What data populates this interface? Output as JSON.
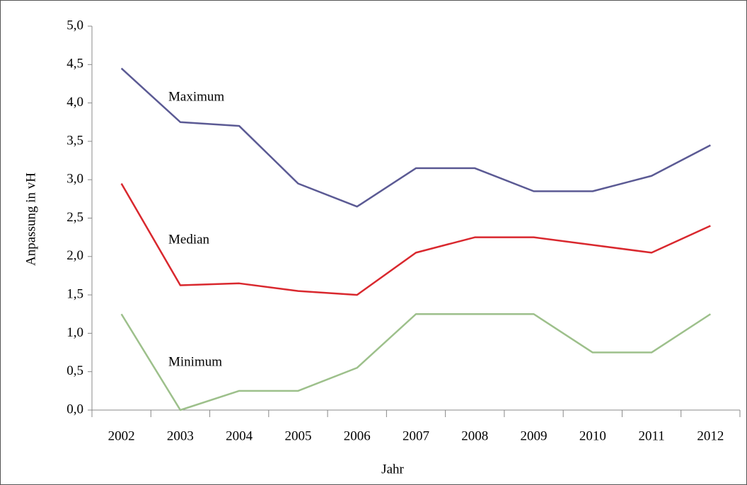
{
  "chart_data": {
    "type": "line",
    "x_label": "Jahr",
    "y_label": "Anpassung in vH",
    "categories": [
      "2002",
      "2003",
      "2004",
      "2005",
      "2006",
      "2007",
      "2008",
      "2009",
      "2010",
      "2011",
      "2012"
    ],
    "series": [
      {
        "name": "Maximum",
        "color": "#5b5a94",
        "values": [
          4.45,
          3.75,
          3.7,
          2.95,
          2.65,
          3.15,
          3.15,
          2.85,
          2.85,
          3.05,
          3.45
        ]
      },
      {
        "name": "Median",
        "color": "#d9282e",
        "values": [
          2.95,
          1.625,
          1.65,
          1.55,
          1.5,
          2.05,
          2.25,
          2.25,
          2.15,
          2.05,
          2.4
        ]
      },
      {
        "name": "Minimum",
        "color": "#9dc08b",
        "values": [
          1.25,
          0,
          0.25,
          0.25,
          0.55,
          1.25,
          1.25,
          1.25,
          0.75,
          0.75,
          1.25
        ]
      }
    ],
    "ylim": [
      0,
      5
    ],
    "yticks": [
      {
        "value": 0,
        "label": "0,0"
      },
      {
        "value": 0.5,
        "label": "0,5"
      },
      {
        "value": 1,
        "label": "1,0"
      },
      {
        "value": 1.5,
        "label": "1,5"
      },
      {
        "value": 2,
        "label": "2,0"
      },
      {
        "value": 2.5,
        "label": "2,5"
      },
      {
        "value": 3,
        "label": "3,0"
      },
      {
        "value": 3.5,
        "label": "3,5"
      },
      {
        "value": 4,
        "label": "4,0"
      },
      {
        "value": 4.5,
        "label": "4,5"
      },
      {
        "value": 5,
        "label": "5,0"
      }
    ],
    "grid": false
  }
}
